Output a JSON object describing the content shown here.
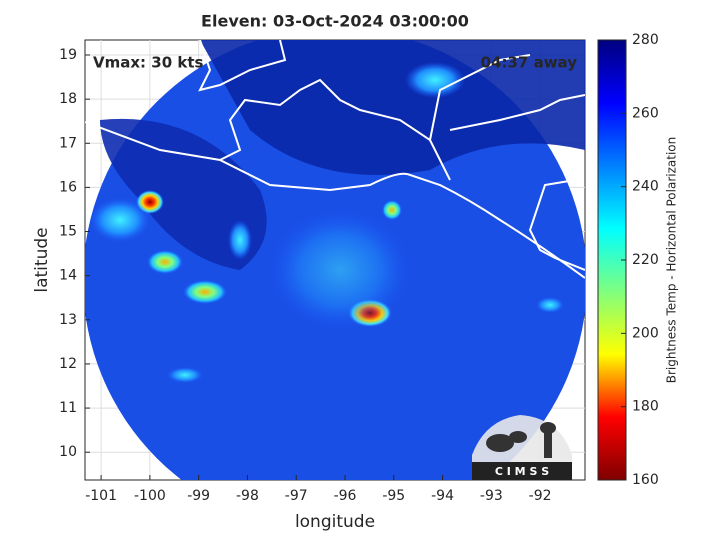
{
  "chart_data": {
    "type": "satellite-map",
    "title": "Eleven: 03-Oct-2024 03:00:00",
    "annotations": [
      "Vmax: 30 kts",
      "04:37 away"
    ],
    "xlabel": "longitude",
    "ylabel": "latitude",
    "xlim": [
      -101.33,
      -91.08
    ],
    "ylim": [
      9.37,
      19.34
    ],
    "xticks": [
      -101,
      -100,
      -99,
      -98,
      -97,
      -96,
      -95,
      -94,
      -93,
      -92
    ],
    "yticks": [
      10,
      11,
      12,
      13,
      14,
      15,
      16,
      17,
      18,
      19
    ],
    "grid": true,
    "colorbar": {
      "label": "Brightness Temp - Horizontal Polarization",
      "clim": [
        160,
        280
      ],
      "ticks": [
        160,
        180,
        200,
        220,
        240,
        260,
        280
      ],
      "colormap": [
        "#7f0000",
        "#ff0000",
        "#ffff00",
        "#7fff7f",
        "#00ffff",
        "#0080ff",
        "#0000ff",
        "#00007f"
      ]
    },
    "logo_text": "C I M S S"
  }
}
